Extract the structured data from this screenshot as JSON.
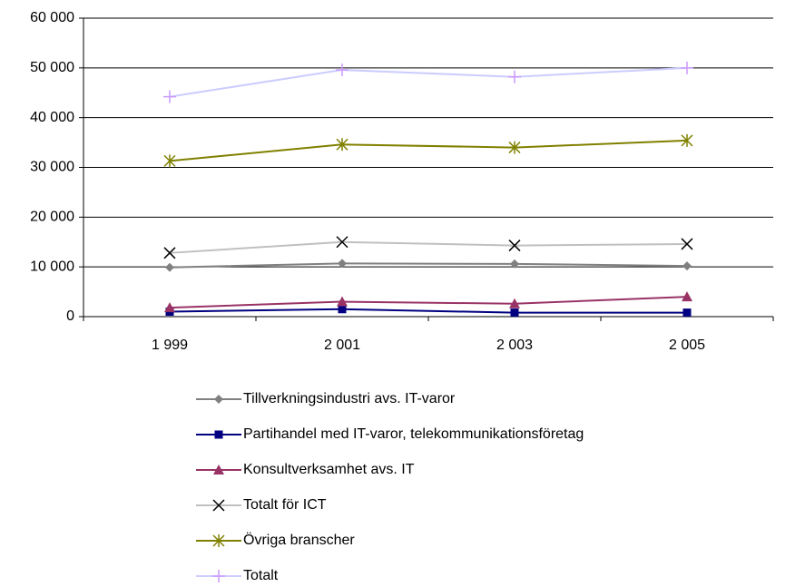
{
  "chart_data": {
    "type": "line",
    "categories": [
      "1 999",
      "2 001",
      "2 003",
      "2 005"
    ],
    "ylim": [
      0,
      60000
    ],
    "yticks": [
      {
        "value": 0,
        "label": "0"
      },
      {
        "value": 10000,
        "label": "10 000"
      },
      {
        "value": 20000,
        "label": "20 000"
      },
      {
        "value": 30000,
        "label": "30 000"
      },
      {
        "value": 40000,
        "label": "40 000"
      },
      {
        "value": 50000,
        "label": "50 000"
      },
      {
        "value": 60000,
        "label": "60 000"
      }
    ],
    "grid": true,
    "legend": "bottom",
    "series": [
      {
        "name": "Tillverkningsindustri avs. IT-varor",
        "color": "#808080",
        "marker": "diamond",
        "marker_color": "#808080",
        "values": [
          9900,
          10700,
          10600,
          10200
        ]
      },
      {
        "name": "Partihandel med IT-varor, telekommunikationsföretag",
        "color": "#000080",
        "marker": "square",
        "marker_color": "#000080",
        "values": [
          1000,
          1500,
          800,
          800
        ]
      },
      {
        "name": "Konsultverksamhet avs. IT",
        "color": "#993366",
        "marker": "triangle",
        "marker_color": "#993366",
        "values": [
          1800,
          3000,
          2600,
          4000
        ]
      },
      {
        "name": "Totalt för ICT",
        "color": "#c0c0c0",
        "marker": "x",
        "marker_color": "#000000",
        "values": [
          12800,
          15000,
          14300,
          14600
        ]
      },
      {
        "name": "Övriga branscher",
        "color": "#808000",
        "marker": "asterisk",
        "marker_color": "#808000",
        "values": [
          31300,
          34600,
          34000,
          35400
        ]
      },
      {
        "name": "Totalt",
        "color": "#ccccff",
        "marker": "plus",
        "marker_color": "#cc99ff",
        "values": [
          44200,
          49600,
          48200,
          50000
        ]
      }
    ]
  }
}
